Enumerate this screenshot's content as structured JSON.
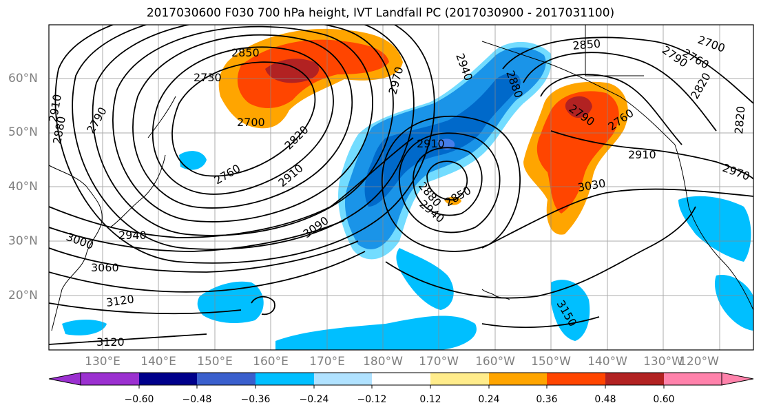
{
  "title": "2017030600 F030 700 hPa height, IVT Landfall PC (2017030900 - 2017031100)",
  "lat_labels": [
    "60°N",
    "50°N",
    "40°N",
    "30°N",
    "20°N"
  ],
  "lon_labels": [
    "130°E",
    "140°E",
    "150°E",
    "160°E",
    "170°E",
    "180°W",
    "170°W",
    "160°W",
    "150°W",
    "140°W",
    "130°W",
    "120°W"
  ],
  "contour_labels": [
    "2850",
    "2730",
    "2700",
    "2790",
    "2880",
    "2910",
    "2820",
    "2760",
    "2910",
    "2940",
    "3000",
    "3060",
    "3120",
    "3120",
    "3090",
    "2910",
    "2880",
    "2850",
    "2940",
    "2970",
    "2940",
    "2880",
    "2850",
    "2790",
    "2760",
    "2910",
    "3030",
    "2970",
    "2820",
    "2820",
    "2700",
    "2760",
    "2790",
    "3150"
  ],
  "colorbar": {
    "ticks": [
      "−0.60",
      "−0.48",
      "−0.36",
      "−0.24",
      "−0.12",
      "0.12",
      "0.24",
      "0.36",
      "0.48",
      "0.60"
    ],
    "colors": [
      "#9b30d0",
      "#00008b",
      "#3a5fcd",
      "#00bfff",
      "#b0e2ff",
      "#ffffff",
      "#ffec8b",
      "#ffa500",
      "#ff4500",
      "#b22222",
      "#ff82ab"
    ]
  }
}
